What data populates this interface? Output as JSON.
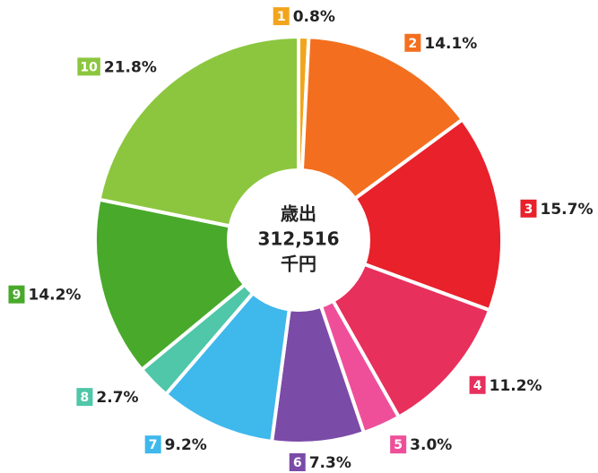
{
  "chart_data": {
    "type": "pie",
    "center_text": [
      "歳出",
      "312,516",
      "千円"
    ],
    "categories": [
      "1",
      "2",
      "3",
      "4",
      "5",
      "6",
      "7",
      "8",
      "9",
      "10"
    ],
    "values": [
      0.8,
      14.1,
      15.7,
      11.2,
      3.0,
      7.3,
      9.2,
      2.7,
      14.2,
      21.8
    ],
    "value_labels": [
      "0.8%",
      "14.1%",
      "15.7%",
      "11.2%",
      "3.0%",
      "7.3%",
      "9.2%",
      "2.7%",
      "14.2%",
      "21.8%"
    ],
    "colors": [
      "#f2a51c",
      "#f36f1f",
      "#e8212b",
      "#e7305c",
      "#ef4f99",
      "#7b4ba8",
      "#3fb8ec",
      "#4fc7a8",
      "#49a92b",
      "#8cc63f"
    ]
  }
}
